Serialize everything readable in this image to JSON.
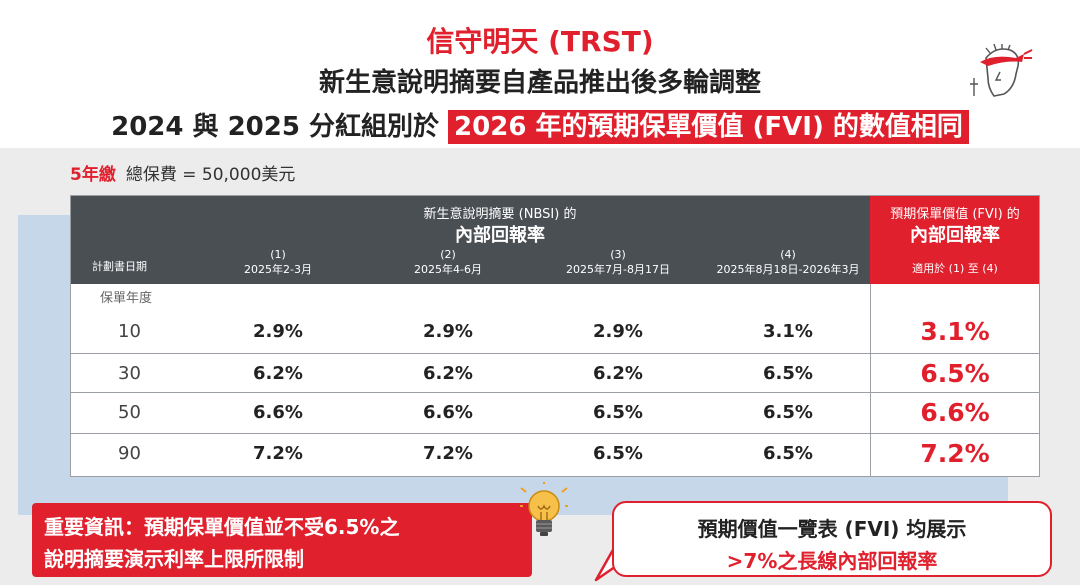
{
  "title": {
    "line1": "信守明天 (TRST)",
    "line2": "新生意說明摘要自產品推出後多輪調整",
    "line3_prefix": "2024 與 2025 分紅組別於 ",
    "line3_highlight": "2026 年的預期保單價值 (FVI) 的數值相同"
  },
  "plan": {
    "term": "5年繳",
    "premium": "總保費 = 50,000美元"
  },
  "table": {
    "nbsi_sub": "新生意說明摘要 (NBSI) 的",
    "nbsi_main": "內部回報率",
    "plan_date_label": "計劃書日期",
    "columns": [
      {
        "num": "(1)",
        "period": "2025年2-3月"
      },
      {
        "num": "(2)",
        "period": "2025年4-6月"
      },
      {
        "num": "(3)",
        "period": "2025年7月-8月17日"
      },
      {
        "num": "(4)",
        "period": "2025年8月18日-2026年3月"
      }
    ],
    "fvi_sub": "預期保單價值 (FVI) 的",
    "fvi_main": "內部回報率",
    "fvi_note": "適用於 (1) 至 (4)",
    "policy_year_label": "保單年度",
    "rows": [
      {
        "year": "10",
        "values": [
          "2.9%",
          "2.9%",
          "2.9%",
          "3.1%"
        ],
        "fvi": "3.1%"
      },
      {
        "year": "30",
        "values": [
          "6.2%",
          "6.2%",
          "6.2%",
          "6.5%"
        ],
        "fvi": "6.5%"
      },
      {
        "year": "50",
        "values": [
          "6.6%",
          "6.6%",
          "6.5%",
          "6.5%"
        ],
        "fvi": "6.6%"
      },
      {
        "year": "90",
        "values": [
          "7.2%",
          "7.2%",
          "6.5%",
          "6.5%"
        ],
        "fvi": "7.2%"
      }
    ]
  },
  "notice": {
    "line1": "重要資訊：預期保單價值並不受6.5%之",
    "line2": "說明摘要演示利率上限所限制"
  },
  "bubble": {
    "line1": "預期價值一覽表 (FVI) 均展示",
    "line2": ">7%之長線內部回報率"
  },
  "colors": {
    "brand_red": "#e0202d",
    "header_grey": "#4a4f54",
    "band_blue": "#c7d7ea"
  },
  "icons": [
    "warrior-logo-icon",
    "lightbulb-icon"
  ]
}
